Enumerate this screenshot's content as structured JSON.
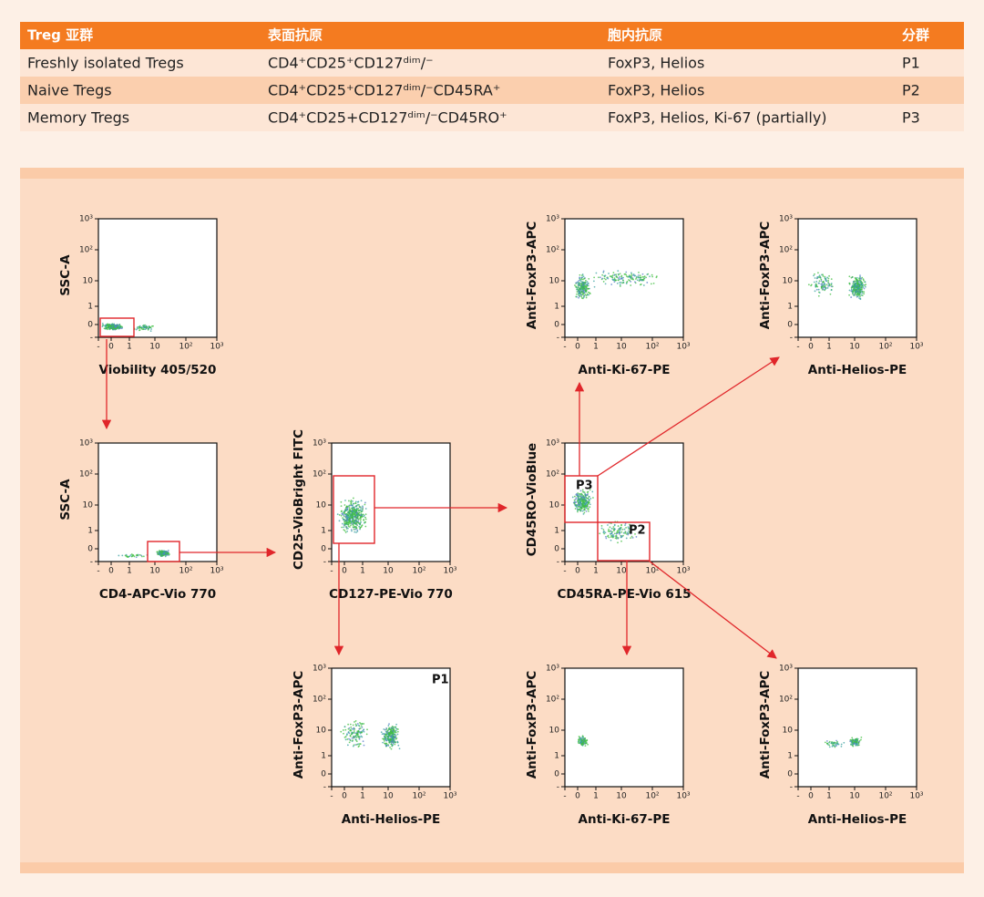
{
  "table": {
    "header": [
      "Treg 亚群",
      "表面抗原",
      "胞内抗原",
      "分群"
    ],
    "rows": [
      [
        "Freshly isolated Tregs",
        "CD4⁺CD25⁺CD127ᵈⁱᵐ/⁻",
        "FoxP3, Helios",
        "P1"
      ],
      [
        "Naive Tregs",
        "CD4⁺CD25⁺CD127ᵈⁱᵐ/⁻CD45RA⁺",
        "FoxP3, Helios",
        "P2"
      ],
      [
        "Memory Tregs",
        "CD4⁺CD25+CD127ᵈⁱᵐ/⁻CD45RO⁺",
        "FoxP3, Helios, Ki-67 (partially)",
        "P3"
      ]
    ]
  },
  "ticks": [
    "-",
    "0",
    "1",
    "10",
    "10²",
    "10³"
  ],
  "plots": [
    {
      "x_label": "Viobility 405/520",
      "y_label": "SSC-A"
    },
    {
      "x_label": "CD4-APC-Vio 770",
      "y_label": "SSC-A"
    },
    {
      "x_label": "CD127-PE-Vio 770",
      "y_label": "CD25-VioBright FITC"
    },
    {
      "x_label": "CD45RA-PE-Vio 615",
      "y_label": "CD45RO-VioBlue"
    },
    {
      "x_label": "Anti-Ki-67-PE",
      "y_label": "Anti-FoxP3-APC"
    },
    {
      "x_label": "Anti-Helios-PE",
      "y_label": "Anti-FoxP3-APC"
    },
    {
      "x_label": "Anti-Helios-PE",
      "y_label": "Anti-FoxP3-APC"
    },
    {
      "x_label": "Anti-Ki-67-PE",
      "y_label": "Anti-FoxP3-APC"
    },
    {
      "x_label": "Anti-Helios-PE",
      "y_label": "Anti-FoxP3-APC"
    }
  ],
  "gates": [
    "P1",
    "P2",
    "P3"
  ]
}
